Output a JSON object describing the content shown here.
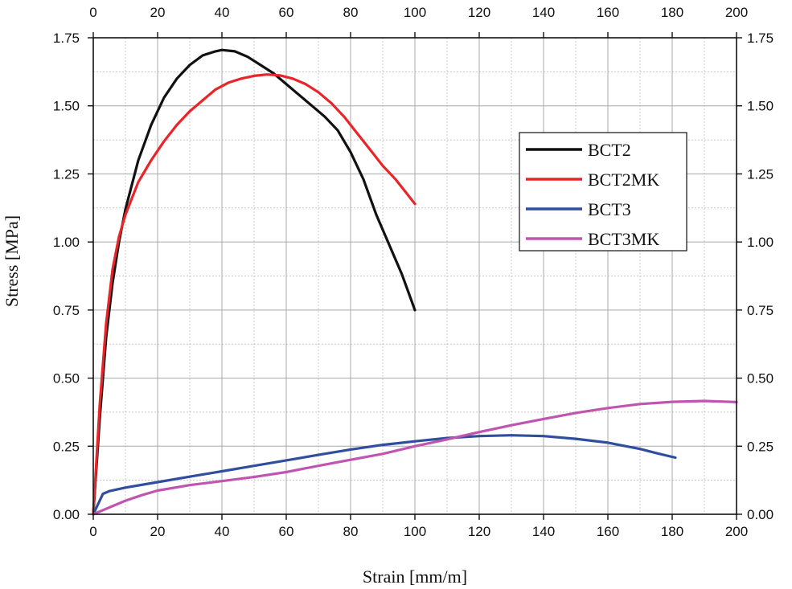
{
  "chart_data": {
    "type": "line",
    "xlabel": "Strain [mm/m]",
    "ylabel": "Stress [MPa]",
    "xlim": [
      0,
      200
    ],
    "ylim": [
      0,
      1.75
    ],
    "x_ticks": [
      "0",
      "20",
      "40",
      "60",
      "80",
      "100",
      "120",
      "140",
      "160",
      "180",
      "200"
    ],
    "y_ticks": [
      "0.00",
      "0.25",
      "0.50",
      "0.75",
      "1.00",
      "1.25",
      "1.50",
      "1.75"
    ],
    "grid": true,
    "legend_position": "upper-right",
    "series": [
      {
        "name": "BCT2",
        "color": "#111111",
        "points": [
          [
            0,
            0
          ],
          [
            2,
            0.35
          ],
          [
            4,
            0.65
          ],
          [
            6,
            0.85
          ],
          [
            8,
            1.0
          ],
          [
            10,
            1.12
          ],
          [
            14,
            1.3
          ],
          [
            18,
            1.43
          ],
          [
            22,
            1.53
          ],
          [
            26,
            1.6
          ],
          [
            30,
            1.65
          ],
          [
            34,
            1.685
          ],
          [
            38,
            1.7
          ],
          [
            40,
            1.705
          ],
          [
            44,
            1.7
          ],
          [
            48,
            1.68
          ],
          [
            52,
            1.65
          ],
          [
            56,
            1.62
          ],
          [
            60,
            1.58
          ],
          [
            64,
            1.54
          ],
          [
            68,
            1.5
          ],
          [
            72,
            1.46
          ],
          [
            76,
            1.41
          ],
          [
            80,
            1.33
          ],
          [
            84,
            1.23
          ],
          [
            88,
            1.1
          ],
          [
            92,
            0.99
          ],
          [
            96,
            0.88
          ],
          [
            100,
            0.75
          ]
        ]
      },
      {
        "name": "BCT2MK",
        "color": "#e8262a",
        "points": [
          [
            0,
            0
          ],
          [
            2,
            0.4
          ],
          [
            4,
            0.7
          ],
          [
            6,
            0.9
          ],
          [
            8,
            1.02
          ],
          [
            10,
            1.1
          ],
          [
            14,
            1.22
          ],
          [
            18,
            1.3
          ],
          [
            22,
            1.37
          ],
          [
            26,
            1.43
          ],
          [
            30,
            1.48
          ],
          [
            34,
            1.52
          ],
          [
            38,
            1.56
          ],
          [
            42,
            1.585
          ],
          [
            46,
            1.6
          ],
          [
            50,
            1.61
          ],
          [
            54,
            1.615
          ],
          [
            58,
            1.612
          ],
          [
            62,
            1.6
          ],
          [
            66,
            1.58
          ],
          [
            70,
            1.55
          ],
          [
            74,
            1.51
          ],
          [
            78,
            1.46
          ],
          [
            82,
            1.4
          ],
          [
            86,
            1.34
          ],
          [
            90,
            1.28
          ],
          [
            94,
            1.23
          ],
          [
            98,
            1.17
          ],
          [
            100,
            1.14
          ]
        ]
      },
      {
        "name": "BCT3",
        "color": "#2f4f9e",
        "points": [
          [
            0,
            0
          ],
          [
            2,
            0.05
          ],
          [
            3,
            0.075
          ],
          [
            5,
            0.085
          ],
          [
            10,
            0.098
          ],
          [
            20,
            0.118
          ],
          [
            30,
            0.138
          ],
          [
            40,
            0.158
          ],
          [
            50,
            0.178
          ],
          [
            60,
            0.198
          ],
          [
            70,
            0.218
          ],
          [
            80,
            0.238
          ],
          [
            90,
            0.255
          ],
          [
            100,
            0.268
          ],
          [
            110,
            0.28
          ],
          [
            120,
            0.287
          ],
          [
            130,
            0.29
          ],
          [
            140,
            0.287
          ],
          [
            150,
            0.277
          ],
          [
            160,
            0.263
          ],
          [
            170,
            0.24
          ],
          [
            175,
            0.225
          ],
          [
            181,
            0.208
          ]
        ]
      },
      {
        "name": "BCT3MK",
        "color": "#c055b0",
        "points": [
          [
            0,
            0
          ],
          [
            5,
            0.025
          ],
          [
            10,
            0.05
          ],
          [
            15,
            0.07
          ],
          [
            20,
            0.087
          ],
          [
            30,
            0.107
          ],
          [
            40,
            0.122
          ],
          [
            50,
            0.137
          ],
          [
            60,
            0.155
          ],
          [
            70,
            0.178
          ],
          [
            80,
            0.2
          ],
          [
            90,
            0.222
          ],
          [
            100,
            0.25
          ],
          [
            110,
            0.275
          ],
          [
            120,
            0.302
          ],
          [
            130,
            0.327
          ],
          [
            140,
            0.35
          ],
          [
            150,
            0.372
          ],
          [
            160,
            0.39
          ],
          [
            170,
            0.405
          ],
          [
            180,
            0.413
          ],
          [
            190,
            0.416
          ],
          [
            200,
            0.412
          ]
        ]
      }
    ]
  }
}
